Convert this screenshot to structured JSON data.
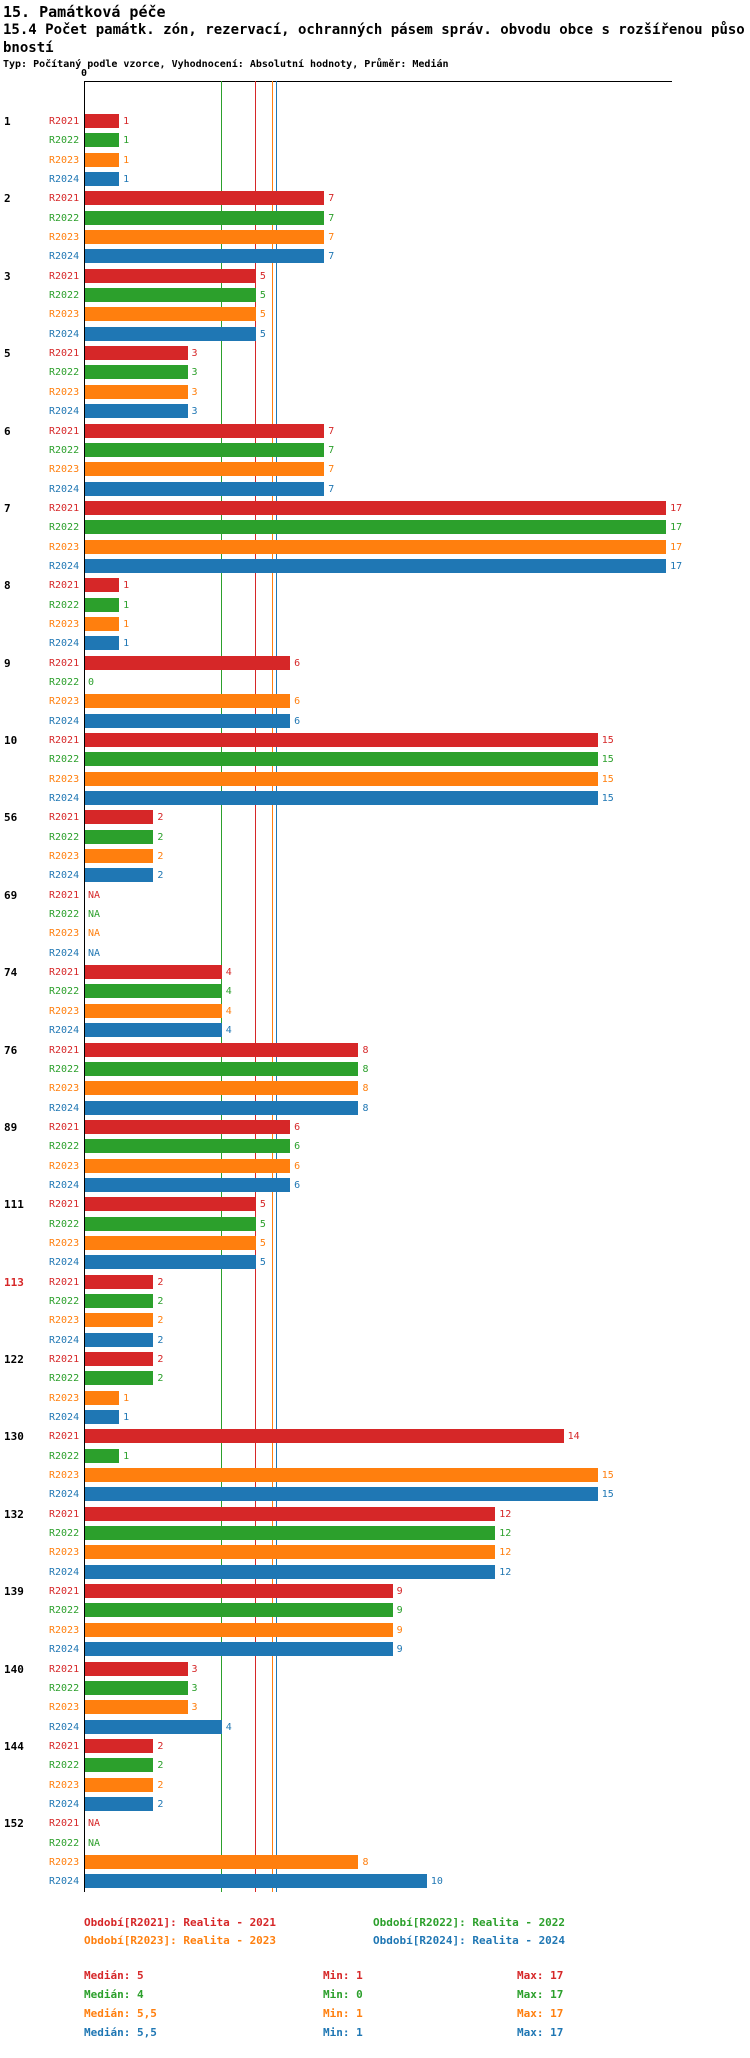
{
  "header": {
    "title": "15. Památková péče",
    "subtitle": "15.4 Počet památk. zón, rezervací, ochranných pásem správ. obvodu obce s rozšířenou působností",
    "meta": "Typ: Počítaný podle vzorce, Vyhodnocení: Absolutní hodnoty, Průměr: Medián"
  },
  "chart_data": {
    "type": "bar",
    "orientation": "horizontal",
    "x_axis": {
      "zero_label": "0",
      "xlim": [
        0,
        17.2
      ],
      "position": "top"
    },
    "series_order": [
      "R2021",
      "R2022",
      "R2023",
      "R2024"
    ],
    "series_colors": {
      "R2021": "#d62728",
      "R2022": "#2ca02c",
      "R2023": "#ff7f0e",
      "R2024": "#1f77b4"
    },
    "median_lines": [
      {
        "series": "R2022",
        "value": 4
      },
      {
        "series": "R2021",
        "value": 5
      },
      {
        "series": "R2023",
        "value": 5.5
      },
      {
        "series": "R2024",
        "value": 5.5
      }
    ],
    "groups": [
      {
        "id": "1",
        "values": {
          "R2021": 1,
          "R2022": 1,
          "R2023": 1,
          "R2024": 1
        }
      },
      {
        "id": "2",
        "values": {
          "R2021": 7,
          "R2022": 7,
          "R2023": 7,
          "R2024": 7
        }
      },
      {
        "id": "3",
        "values": {
          "R2021": 5,
          "R2022": 5,
          "R2023": 5,
          "R2024": 5
        }
      },
      {
        "id": "5",
        "values": {
          "R2021": 3,
          "R2022": 3,
          "R2023": 3,
          "R2024": 3
        }
      },
      {
        "id": "6",
        "values": {
          "R2021": 7,
          "R2022": 7,
          "R2023": 7,
          "R2024": 7
        }
      },
      {
        "id": "7",
        "values": {
          "R2021": 17,
          "R2022": 17,
          "R2023": 17,
          "R2024": 17
        }
      },
      {
        "id": "8",
        "values": {
          "R2021": 1,
          "R2022": 1,
          "R2023": 1,
          "R2024": 1
        }
      },
      {
        "id": "9",
        "values": {
          "R2021": 6,
          "R2022": 0,
          "R2023": 6,
          "R2024": 6
        }
      },
      {
        "id": "10",
        "values": {
          "R2021": 15,
          "R2022": 15,
          "R2023": 15,
          "R2024": 15
        }
      },
      {
        "id": "56",
        "values": {
          "R2021": 2,
          "R2022": 2,
          "R2023": 2,
          "R2024": 2
        }
      },
      {
        "id": "69",
        "values": {
          "R2021": "NA",
          "R2022": "NA",
          "R2023": "NA",
          "R2024": "NA"
        }
      },
      {
        "id": "74",
        "values": {
          "R2021": 4,
          "R2022": 4,
          "R2023": 4,
          "R2024": 4
        }
      },
      {
        "id": "76",
        "values": {
          "R2021": 8,
          "R2022": 8,
          "R2023": 8,
          "R2024": 8
        }
      },
      {
        "id": "89",
        "values": {
          "R2021": 6,
          "R2022": 6,
          "R2023": 6,
          "R2024": 6
        }
      },
      {
        "id": "111",
        "values": {
          "R2021": 5,
          "R2022": 5,
          "R2023": 5,
          "R2024": 5
        }
      },
      {
        "id": "113",
        "highlight": true,
        "values": {
          "R2021": 2,
          "R2022": 2,
          "R2023": 2,
          "R2024": 2
        }
      },
      {
        "id": "122",
        "values": {
          "R2021": 2,
          "R2022": 2,
          "R2023": 1,
          "R2024": 1
        }
      },
      {
        "id": "130",
        "values": {
          "R2021": 14,
          "R2022": 1,
          "R2023": 15,
          "R2024": 15
        }
      },
      {
        "id": "132",
        "values": {
          "R2021": 12,
          "R2022": 12,
          "R2023": 12,
          "R2024": 12
        }
      },
      {
        "id": "139",
        "values": {
          "R2021": 9,
          "R2022": 9,
          "R2023": 9,
          "R2024": 9
        }
      },
      {
        "id": "140",
        "values": {
          "R2021": 3,
          "R2022": 3,
          "R2023": 3,
          "R2024": 4
        }
      },
      {
        "id": "144",
        "values": {
          "R2021": 2,
          "R2022": 2,
          "R2023": 2,
          "R2024": 2
        }
      },
      {
        "id": "152",
        "values": {
          "R2021": "NA",
          "R2022": "NA",
          "R2023": 8,
          "R2024": 10
        }
      }
    ]
  },
  "legend": {
    "items": [
      {
        "series": "R2021",
        "label": "Období[R2021]: Realita - 2021"
      },
      {
        "series": "R2022",
        "label": "Období[R2022]: Realita - 2022"
      },
      {
        "series": "R2023",
        "label": "Období[R2023]: Realita - 2023"
      },
      {
        "series": "R2024",
        "label": "Období[R2024]: Realita - 2024"
      }
    ]
  },
  "stats": {
    "rows": [
      {
        "series": "R2021",
        "median": "Medián: 5",
        "min": "Min: 1",
        "max": "Max: 17"
      },
      {
        "series": "R2022",
        "median": "Medián: 4",
        "min": "Min: 0",
        "max": "Max: 17"
      },
      {
        "series": "R2023",
        "median": "Medián: 5,5",
        "min": "Min: 1",
        "max": "Max: 17"
      },
      {
        "series": "R2024",
        "median": "Medián: 5,5",
        "min": "Min: 1",
        "max": "Max: 17"
      }
    ]
  }
}
